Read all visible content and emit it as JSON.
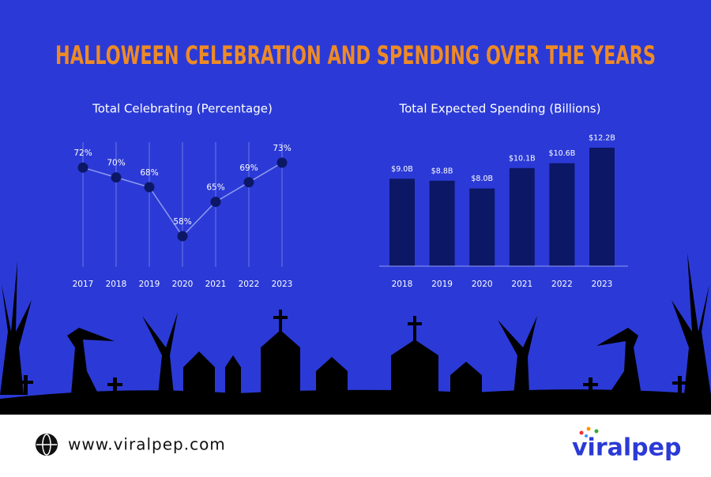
{
  "title": "HALLOWEEN CELEBRATION AND SPENDING OVER THE YEARS",
  "chart_data": [
    {
      "type": "line",
      "title": "Total Celebrating (Percentage)",
      "categories": [
        "2017",
        "2018",
        "2019",
        "2020",
        "2021",
        "2022",
        "2023"
      ],
      "values": [
        72,
        70,
        68,
        58,
        65,
        69,
        73
      ],
      "value_labels": [
        "72%",
        "70%",
        "68%",
        "58%",
        "65%",
        "69%",
        "73%"
      ],
      "color": "#0c1766",
      "grid": true
    },
    {
      "type": "bar",
      "title": "Total Expected Spending (Billions)",
      "categories": [
        "2018",
        "2019",
        "2020",
        "2021",
        "2022",
        "2023"
      ],
      "values": [
        9.0,
        8.8,
        8.0,
        10.1,
        10.6,
        12.2
      ],
      "value_labels": [
        "$9.0B",
        "$8.8B",
        "$8.0B",
        "$10.1B",
        "$10.6B",
        "$12.2B"
      ],
      "color": "#0c1766"
    }
  ],
  "footer": {
    "url": "www.viralpep.com",
    "brand": "viralpep"
  }
}
